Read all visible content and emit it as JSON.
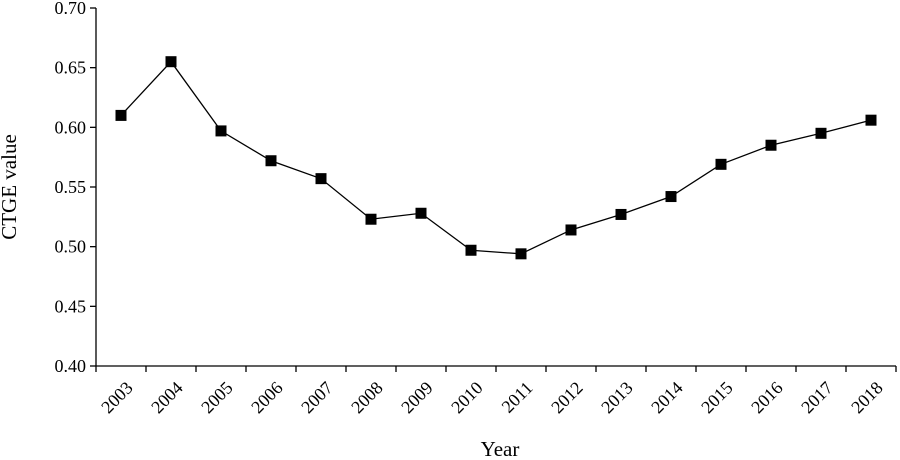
{
  "chart_data": {
    "type": "line",
    "title": "",
    "xlabel": "Year",
    "ylabel": "CTGE value",
    "categories": [
      "2003",
      "2004",
      "2005",
      "2006",
      "2007",
      "2008",
      "2009",
      "2010",
      "2011",
      "2012",
      "2013",
      "2014",
      "2015",
      "2016",
      "2017",
      "2018"
    ],
    "series": [
      {
        "values": [
          0.61,
          0.655,
          0.597,
          0.572,
          0.557,
          0.523,
          0.528,
          0.497,
          0.494,
          0.514,
          0.527,
          0.542,
          0.569,
          0.585,
          0.595,
          0.606
        ]
      }
    ],
    "ylim": [
      0.4,
      0.7
    ],
    "yticks": [
      "0.40",
      "0.45",
      "0.50",
      "0.55",
      "0.60",
      "0.65",
      "0.70"
    ],
    "grid": false,
    "legend": "none",
    "marker": "filled-square",
    "colors": {
      "line": "#000000",
      "marker": "#000000"
    }
  }
}
